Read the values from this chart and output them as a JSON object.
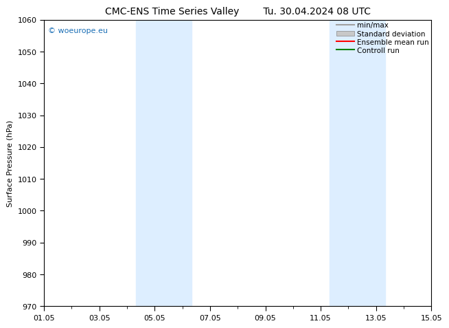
{
  "title_left": "CMC-ENS Time Series Valley",
  "title_right": "Tu. 30.04.2024 08 UTC",
  "ylabel": "Surface Pressure (hPa)",
  "ylim": [
    970,
    1060
  ],
  "yticks": [
    970,
    980,
    990,
    1000,
    1010,
    1020,
    1030,
    1040,
    1050,
    1060
  ],
  "xlim_start": 0,
  "xlim_end": 14,
  "xtick_labels": [
    "01.05",
    "03.05",
    "05.05",
    "07.05",
    "09.05",
    "11.05",
    "13.05",
    "15.05"
  ],
  "xtick_positions": [
    0,
    2,
    4,
    6,
    8,
    10,
    12,
    14
  ],
  "shaded_regions": [
    {
      "xmin": 3.33,
      "xmax": 5.33,
      "color": "#ddeeff"
    },
    {
      "xmin": 10.33,
      "xmax": 12.33,
      "color": "#ddeeff"
    }
  ],
  "watermark": "© woeurope.eu",
  "watermark_color": "#1a6eb5",
  "bg_color": "#ffffff",
  "plot_bg_color": "#ffffff",
  "legend_items": [
    {
      "label": "min/max",
      "color": "#a0a0a0",
      "style": "line"
    },
    {
      "label": "Standard deviation",
      "color": "#c8c8c8",
      "style": "bar"
    },
    {
      "label": "Ensemble mean run",
      "color": "#ff0000",
      "style": "line"
    },
    {
      "label": "Controll run",
      "color": "#008000",
      "style": "line"
    }
  ],
  "title_fontsize": 10,
  "tick_fontsize": 8,
  "ylabel_fontsize": 8,
  "watermark_fontsize": 8,
  "legend_fontsize": 7.5
}
